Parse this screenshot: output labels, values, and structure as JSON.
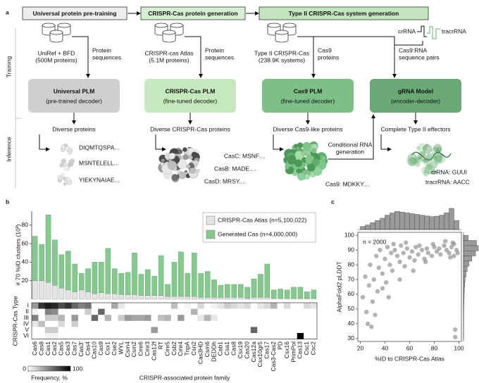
{
  "diagram": {
    "label": "a",
    "stages": [
      "Universal protein pre-training",
      "CRISPR-Cas protein generation",
      "Type II CRISPR-Cas system generation"
    ],
    "row_labels": [
      "Training",
      "Inference"
    ],
    "datasets": [
      {
        "lines": [
          "UniRef + BFD",
          "(500M proteins)"
        ]
      },
      {
        "lines": [
          "CRISPR-cas Atlas",
          "(5.1M proteins)"
        ]
      },
      {
        "lines": [
          "Type II CRISPR-Cas",
          "(238.9K systems)"
        ]
      }
    ],
    "flows": [
      {
        "lines": [
          "Protein",
          "sequences"
        ]
      },
      {
        "lines": [
          "Protein",
          "sequences"
        ]
      },
      {
        "lines": [
          "Cas9",
          "proteins"
        ]
      },
      {
        "lines": [
          "Cas9:RNA",
          "sequence pairs"
        ]
      }
    ],
    "models": [
      {
        "name": "Universal PLM",
        "desc": "(pre-trained decoder)"
      },
      {
        "name": "CRISPR-Cas PLM",
        "desc": "(fine-tuned decoder)"
      },
      {
        "name": "Cas9 PLM",
        "desc": "(fine-tuned decoder)"
      },
      {
        "name": "gRNA Model",
        "desc": "(encoder-decoder)"
      }
    ],
    "outputs": [
      {
        "title": "Diverse proteins",
        "labels": [
          "DIQMTQSPA...",
          "MSNTELELL...",
          "YIEKYNAIAE..."
        ]
      },
      {
        "title": "Diverse CRISPR-Cas proteins",
        "labels": [
          "CasC: MSNF....",
          "CasB: MADE....",
          "CasD: MRSY...."
        ]
      },
      {
        "title": "Diverse Cas9-like proteins",
        "labels": [
          "Cas9: MDKKY...."
        ]
      },
      {
        "title": "Complete Type II effectors",
        "labels": [
          "crRNA: GUUI",
          "tracrRNA: AACC"
        ]
      }
    ],
    "conditional": [
      "Conditional RNA",
      "generation"
    ],
    "rna_legend": [
      "crRNA",
      "tracrRNA"
    ]
  },
  "chart_data": [
    {
      "type": "bar",
      "stacked": true,
      "label": "b",
      "ylabel": "# 70 %ID clusters (10³)",
      "xlabel": "CRISPR-associated protein family",
      "categories": [
        "Cas6",
        "Cas8",
        "Cas1",
        "Cas2",
        "Cas5",
        "Cas3",
        "Cas7",
        "Cas3'",
        "Cas4",
        "Cas10",
        "Cas9",
        "Csx1",
        "Cse2",
        "WYL",
        "Csm4",
        "Csm2",
        "Cmr6",
        "Cmr3",
        "Cas12f",
        "RT",
        "Cmr5",
        "Csb2",
        "Cmr4",
        "TnpA",
        "Csn2",
        "Cas3HD",
        "Csm6",
        "DEDDh",
        "Cab1",
        "Csa1",
        "Cas8",
        "Csx19",
        "Cas20",
        "Cas12a",
        "Csx10gr5",
        "Cas17",
        "Cas3-Cas2",
        "PD",
        "Csx16",
        "PrimPol",
        "Cas13",
        "Csc1",
        "Csc2"
      ],
      "series": [
        {
          "name": "CRISPR-Cas Atlas (n=5,100,022)",
          "color": "#e4e4e4",
          "values": [
            20,
            20,
            18,
            15,
            12,
            10,
            8,
            10,
            8,
            6,
            7,
            6,
            6,
            5,
            5,
            5,
            4,
            4,
            4,
            4,
            3,
            3,
            3,
            3,
            3,
            2,
            2,
            2,
            2,
            2,
            2,
            2,
            1,
            2,
            2,
            2,
            1,
            1,
            1,
            1,
            1,
            1,
            1
          ]
        },
        {
          "name": "Generated Cas (n=4,000,000)",
          "color": "#86c98e",
          "values": [
            48,
            39,
            73,
            49,
            36,
            42,
            30,
            18,
            25,
            34,
            33,
            49,
            27,
            23,
            24,
            45,
            23,
            28,
            21,
            43,
            13,
            37,
            48,
            25,
            47,
            26,
            28,
            19,
            13,
            14,
            14,
            14,
            12,
            20,
            25,
            36,
            9,
            10,
            9,
            12,
            12,
            7,
            9
          ]
        }
      ],
      "ylim": [
        0,
        95
      ],
      "yticks": [
        20,
        40,
        60,
        80
      ],
      "legend": "upper right"
    },
    {
      "type": "heatmap",
      "ylabel": "CRISPR-Cas Type",
      "rows": [
        "I",
        "II",
        "III",
        "IV",
        "V",
        "VI"
      ],
      "values": [
        [
          40,
          80,
          90,
          85,
          70,
          80,
          60,
          50,
          55,
          0,
          0,
          0,
          35,
          10,
          0,
          0,
          0,
          0,
          0,
          0,
          0,
          25,
          0,
          5,
          0,
          15,
          0,
          5,
          10,
          20,
          15,
          10,
          15,
          0,
          10,
          15,
          30,
          0,
          15,
          0,
          0,
          15,
          10
        ],
        [
          5,
          0,
          50,
          45,
          0,
          0,
          0,
          0,
          20,
          0,
          60,
          0,
          0,
          0,
          0,
          0,
          0,
          0,
          0,
          0,
          0,
          0,
          0,
          0,
          30,
          0,
          0,
          0,
          0,
          0,
          0,
          0,
          0,
          0,
          0,
          0,
          0,
          0,
          0,
          0,
          0,
          0,
          0
        ],
        [
          50,
          0,
          20,
          20,
          30,
          0,
          40,
          0,
          0,
          60,
          0,
          30,
          0,
          20,
          40,
          35,
          35,
          40,
          0,
          25,
          30,
          0,
          40,
          0,
          0,
          10,
          30,
          10,
          0,
          0,
          0,
          0,
          0,
          0,
          0,
          0,
          0,
          0,
          0,
          0,
          0,
          0,
          0
        ],
        [
          10,
          25,
          0,
          0,
          15,
          0,
          20,
          0,
          0,
          0,
          0,
          0,
          0,
          0,
          0,
          0,
          0,
          0,
          0,
          0,
          0,
          0,
          0,
          0,
          0,
          0,
          0,
          0,
          0,
          0,
          0,
          0,
          0,
          0,
          0,
          0,
          0,
          0,
          0,
          0,
          0,
          0,
          0
        ],
        [
          0,
          0,
          20,
          20,
          0,
          0,
          0,
          0,
          0,
          0,
          0,
          0,
          0,
          0,
          0,
          0,
          0,
          0,
          40,
          0,
          0,
          0,
          0,
          0,
          0,
          0,
          0,
          0,
          0,
          0,
          0,
          0,
          0,
          60,
          0,
          0,
          0,
          0,
          0,
          0,
          0,
          0,
          0
        ],
        [
          0,
          0,
          5,
          5,
          0,
          0,
          0,
          0,
          0,
          0,
          0,
          0,
          0,
          0,
          0,
          0,
          0,
          0,
          0,
          0,
          0,
          0,
          0,
          0,
          0,
          0,
          0,
          0,
          0,
          0,
          0,
          0,
          0,
          0,
          0,
          0,
          0,
          0,
          0,
          0,
          100,
          0,
          0
        ]
      ],
      "clim": [
        0,
        100
      ],
      "cticks": [
        0,
        100
      ],
      "colors": [
        "#ffffff",
        "#000000"
      ],
      "colorbar_label": "Frequency, %"
    },
    {
      "type": "scatter",
      "label": "c",
      "xlabel": "%ID to CRISPR-Cas Atlas",
      "ylabel": "AlphaFold2 pLDDT",
      "annotation": "n = 2000",
      "color": "#8a8a8a",
      "x": [
        22,
        24,
        25,
        27,
        28,
        30,
        31,
        33,
        34,
        35,
        36,
        38,
        40,
        41,
        42,
        44,
        45,
        46,
        48,
        50,
        52,
        53,
        55,
        56,
        58,
        60,
        62,
        64,
        65,
        67,
        70,
        72,
        74,
        75,
        78,
        80,
        82,
        85,
        88,
        90,
        92,
        94,
        95,
        96,
        97,
        98,
        99,
        97,
        96,
        38,
        43,
        47,
        52,
        57,
        63,
        68,
        73,
        79,
        84,
        89,
        93,
        26,
        32,
        29
      ],
      "y": [
        58,
        72,
        48,
        66,
        80,
        55,
        70,
        86,
        62,
        78,
        90,
        74,
        84,
        68,
        92,
        80,
        88,
        76,
        90,
        86,
        82,
        93,
        88,
        79,
        91,
        85,
        89,
        83,
        92,
        87,
        90,
        84,
        91,
        88,
        86,
        92,
        89,
        87,
        93,
        90,
        88,
        92,
        95,
        86,
        36,
        90,
        88,
        31,
        94,
        64,
        58,
        94,
        70,
        95,
        76,
        93,
        82,
        94,
        91,
        96,
        85,
        40,
        46,
        38
      ],
      "xlim": [
        18,
        102
      ],
      "ylim": [
        28,
        102
      ],
      "xticks": [
        20,
        40,
        60,
        80,
        100
      ],
      "yticks": [
        30,
        40,
        50,
        60,
        70,
        80,
        90,
        100
      ],
      "hist_color": "#9a9a9a",
      "x_hist": {
        "bins": [
          20,
          24,
          28,
          32,
          36,
          40,
          44,
          48,
          52,
          56,
          60,
          64,
          68,
          72,
          76,
          80,
          84,
          88,
          92,
          96,
          100
        ],
        "counts": [
          20,
          30,
          45,
          60,
          75,
          95,
          110,
          120,
          115,
          110,
          105,
          100,
          95,
          90,
          85,
          88,
          95,
          110,
          140,
          60
        ]
      },
      "y_hist": {
        "bins": [
          30,
          33.5,
          37,
          40.5,
          44,
          47.5,
          51,
          54.5,
          58,
          61.5,
          65,
          68.5,
          72,
          75.5,
          79,
          82.5,
          86,
          89.5,
          93,
          96.5,
          100
        ],
        "counts": [
          2,
          2,
          3,
          3,
          5,
          6,
          8,
          10,
          14,
          18,
          25,
          35,
          55,
          80,
          120,
          180,
          260,
          320,
          280,
          100
        ]
      }
    }
  ]
}
